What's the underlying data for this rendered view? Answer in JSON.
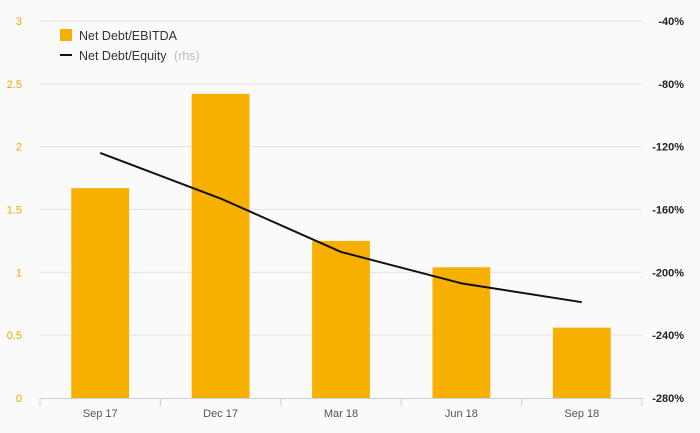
{
  "chart_data": {
    "type": "bar+line",
    "categories": [
      "Sep 17",
      "Dec 17",
      "Mar 18",
      "Jun 18",
      "Sep 18"
    ],
    "series": [
      {
        "name": "Net Debt/EBITDA",
        "type": "bar",
        "axis": "left",
        "color": "#f8b000",
        "values": [
          1.67,
          2.42,
          1.25,
          1.04,
          0.56
        ]
      },
      {
        "name": "Net Debt/Equity",
        "type": "line",
        "axis": "right",
        "color": "#111111",
        "values": [
          -124,
          -153,
          -187,
          -207,
          -219
        ]
      }
    ],
    "rhs_tag": "(rhs)",
    "left_axis": {
      "ylim": [
        0,
        3
      ],
      "ticks": [
        0,
        0.5,
        1,
        1.5,
        2,
        2.5,
        3
      ],
      "tick_labels": [
        "0",
        "0.5",
        "1",
        "1.5",
        "2",
        "2.5",
        "3"
      ],
      "tick_color": "#f0a500"
    },
    "right_axis": {
      "ylim": [
        -280,
        -40
      ],
      "ticks": [
        -280,
        -240,
        -200,
        -160,
        -120,
        -80,
        -40
      ],
      "tick_labels": [
        "-280%",
        "-240%",
        "-200%",
        "-160%",
        "-120%",
        "-80%",
        "-40%"
      ]
    },
    "grid": true,
    "legend_position": "top-left"
  }
}
